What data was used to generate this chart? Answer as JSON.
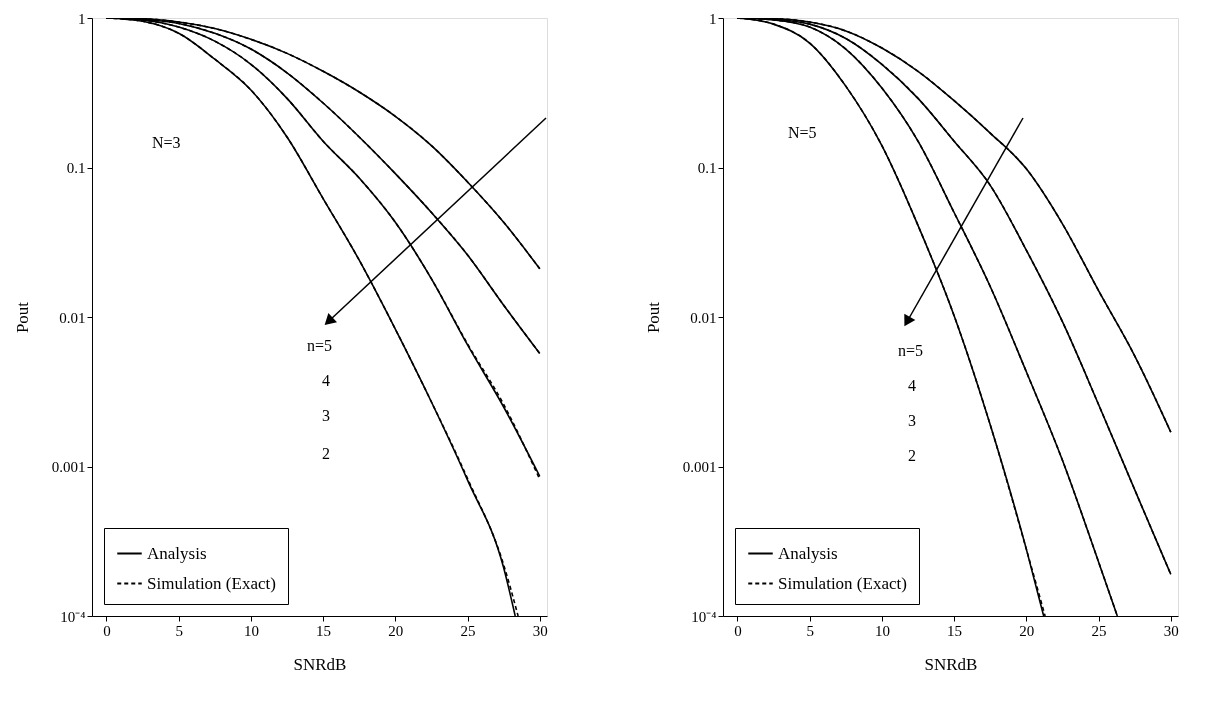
{
  "chart_data": [
    {
      "type": "line",
      "xlabel": "SNRdB",
      "ylabel": "Pout",
      "log": "y",
      "legend": "bottom left",
      "marker": "none",
      "grid": false,
      "xlim": [
        -1,
        30.5
      ],
      "xticks": [
        0,
        5,
        10,
        15,
        20,
        25,
        30
      ],
      "ylim": [
        0.0001,
        1
      ],
      "yticks": [
        1,
        0.1,
        0.01,
        0.001,
        {
          "value": 0.0001,
          "label": "10⁻⁴"
        }
      ],
      "annotations": [
        "N=3",
        "n=5",
        "4",
        "3",
        "2"
      ],
      "series": [
        {
          "name": "Analysis",
          "color": "#000000",
          "line_style": "solid",
          "x": [
            0,
            2.5,
            5,
            7.5,
            10,
            12.5,
            15,
            17.5,
            20,
            22.5,
            25,
            27.5,
            28.3
          ],
          "values": [
            1,
            0.95,
            0.79,
            0.53,
            0.33,
            0.16,
            0.062,
            0.024,
            0.0083,
            0.0027,
            0.00081,
            0.00021,
            0.0001
          ]
        },
        {
          "color": "#000000",
          "line_style": "solid",
          "x": [
            0,
            2.5,
            5,
            7.5,
            10,
            12.5,
            15,
            17.5,
            20,
            22.5,
            25,
            27.5,
            30
          ],
          "values": [
            1,
            0.97,
            0.87,
            0.7,
            0.49,
            0.29,
            0.15,
            0.085,
            0.043,
            0.018,
            0.0065,
            0.0025,
            0.00086
          ]
        },
        {
          "color": "#000000",
          "line_style": "solid",
          "x": [
            0,
            2.5,
            5,
            7.5,
            10,
            12.5,
            15,
            17.5,
            20,
            22.5,
            25,
            27.5,
            30
          ],
          "values": [
            1,
            0.98,
            0.92,
            0.79,
            0.62,
            0.43,
            0.27,
            0.16,
            0.091,
            0.05,
            0.026,
            0.012,
            0.0057
          ]
        },
        {
          "color": "#000000",
          "line_style": "solid",
          "x": [
            0,
            2.5,
            5,
            7.5,
            10,
            12.5,
            15,
            17.5,
            20,
            22.5,
            25,
            27.5,
            30
          ],
          "values": [
            1,
            0.99,
            0.94,
            0.85,
            0.72,
            0.58,
            0.44,
            0.32,
            0.22,
            0.14,
            0.08,
            0.043,
            0.021
          ]
        },
        {
          "name": "Simulation (Exact)",
          "color": "#000000",
          "line_style": "dashed",
          "x": [
            0,
            2.5,
            5,
            7.5,
            10,
            12.5,
            15,
            17.5,
            20,
            22.5,
            25,
            27.5,
            28.5
          ],
          "values": [
            1,
            0.95,
            0.79,
            0.53,
            0.33,
            0.16,
            0.062,
            0.024,
            0.0083,
            0.0027,
            0.00083,
            0.00022,
            0.0001
          ]
        },
        {
          "color": "#000000",
          "line_style": "dashed",
          "x": [
            0,
            2.5,
            5,
            7.5,
            10,
            12.5,
            15,
            17.5,
            20,
            22.5,
            25,
            27.5,
            30
          ],
          "values": [
            1,
            0.97,
            0.87,
            0.7,
            0.49,
            0.29,
            0.15,
            0.085,
            0.043,
            0.018,
            0.0066,
            0.0026,
            0.00082
          ]
        },
        {
          "color": "#000000",
          "line_style": "dashed",
          "x": [
            0,
            2.5,
            5,
            7.5,
            10,
            12.5,
            15,
            17.5,
            20,
            22.5,
            25,
            27.5,
            30
          ],
          "values": [
            1,
            0.98,
            0.92,
            0.79,
            0.62,
            0.43,
            0.27,
            0.16,
            0.091,
            0.05,
            0.026,
            0.012,
            0.0057
          ]
        },
        {
          "color": "#000000",
          "line_style": "dashed",
          "x": [
            0,
            2.5,
            5,
            7.5,
            10,
            12.5,
            15,
            17.5,
            20,
            22.5,
            25,
            27.5,
            30
          ],
          "values": [
            1,
            0.99,
            0.94,
            0.85,
            0.72,
            0.58,
            0.44,
            0.32,
            0.22,
            0.14,
            0.08,
            0.043,
            0.021
          ]
        }
      ]
    },
    {
      "type": "line",
      "xlabel": "SNRdB",
      "ylabel": "Pout",
      "log": "y",
      "legend": "bottom left",
      "marker": "none",
      "grid": false,
      "xlim": [
        -1,
        30.5
      ],
      "xticks": [
        0,
        5,
        10,
        15,
        20,
        25,
        30
      ],
      "ylim": [
        0.0001,
        1
      ],
      "yticks": [
        1,
        0.1,
        0.01,
        0.001,
        {
          "value": 0.0001,
          "label": "10⁻⁴"
        }
      ],
      "annotations": [
        "N=5",
        "n=5",
        "4",
        "3",
        "2"
      ],
      "series": [
        {
          "name": "Analysis",
          "color": "#000000",
          "line_style": "solid",
          "x": [
            0,
            2.5,
            5,
            7.5,
            10,
            12.5,
            15,
            17.5,
            20,
            21.2
          ],
          "values": [
            1,
            0.91,
            0.68,
            0.35,
            0.14,
            0.041,
            0.0102,
            0.0019,
            0.00028,
            0.0001
          ]
        },
        {
          "color": "#000000",
          "line_style": "solid",
          "x": [
            0,
            2.5,
            5,
            7.5,
            10,
            12.5,
            15,
            17.5,
            20,
            22.5,
            25,
            26.3
          ],
          "values": [
            1,
            0.97,
            0.87,
            0.62,
            0.34,
            0.15,
            0.05,
            0.016,
            0.0043,
            0.0011,
            0.00023,
            0.0001
          ]
        },
        {
          "color": "#000000",
          "line_style": "solid",
          "x": [
            0,
            2.5,
            5,
            7.5,
            10,
            12.5,
            15,
            17.5,
            20,
            22.5,
            25,
            27.5,
            30
          ],
          "values": [
            1,
            0.98,
            0.91,
            0.73,
            0.49,
            0.29,
            0.15,
            0.076,
            0.028,
            0.0093,
            0.0026,
            0.0007,
            0.00019
          ]
        },
        {
          "color": "#000000",
          "line_style": "solid",
          "x": [
            0,
            2.5,
            5,
            7.5,
            10,
            12.5,
            15,
            17.5,
            20,
            22.5,
            25,
            27.5,
            30
          ],
          "values": [
            1,
            0.99,
            0.94,
            0.82,
            0.63,
            0.44,
            0.28,
            0.17,
            0.098,
            0.042,
            0.015,
            0.0055,
            0.0017
          ]
        },
        {
          "name": "Simulation (Exact)",
          "color": "#000000",
          "line_style": "dashed",
          "x": [
            0,
            2.5,
            5,
            7.5,
            10,
            12.5,
            15,
            17.5,
            20,
            21.3
          ],
          "values": [
            1,
            0.91,
            0.68,
            0.35,
            0.14,
            0.041,
            0.0102,
            0.0019,
            0.00028,
            0.0001
          ]
        },
        {
          "color": "#000000",
          "line_style": "dashed",
          "x": [
            0,
            2.5,
            5,
            7.5,
            10,
            12.5,
            15,
            17.5,
            20,
            22.5,
            25,
            26.3
          ],
          "values": [
            1,
            0.97,
            0.87,
            0.62,
            0.34,
            0.15,
            0.05,
            0.016,
            0.0043,
            0.0011,
            0.00023,
            0.0001
          ]
        },
        {
          "color": "#000000",
          "line_style": "dashed",
          "x": [
            0,
            2.5,
            5,
            7.5,
            10,
            12.5,
            15,
            17.5,
            20,
            22.5,
            25,
            27.5,
            30
          ],
          "values": [
            1,
            0.98,
            0.91,
            0.73,
            0.49,
            0.29,
            0.15,
            0.076,
            0.028,
            0.0093,
            0.0026,
            0.0007,
            0.00019
          ]
        },
        {
          "color": "#000000",
          "line_style": "dashed",
          "x": [
            0,
            2.5,
            5,
            7.5,
            10,
            12.5,
            15,
            17.5,
            20,
            22.5,
            25,
            27.5,
            30
          ],
          "values": [
            1,
            0.99,
            0.94,
            0.82,
            0.63,
            0.44,
            0.28,
            0.17,
            0.098,
            0.042,
            0.015,
            0.0055,
            0.0017
          ]
        }
      ]
    }
  ]
}
